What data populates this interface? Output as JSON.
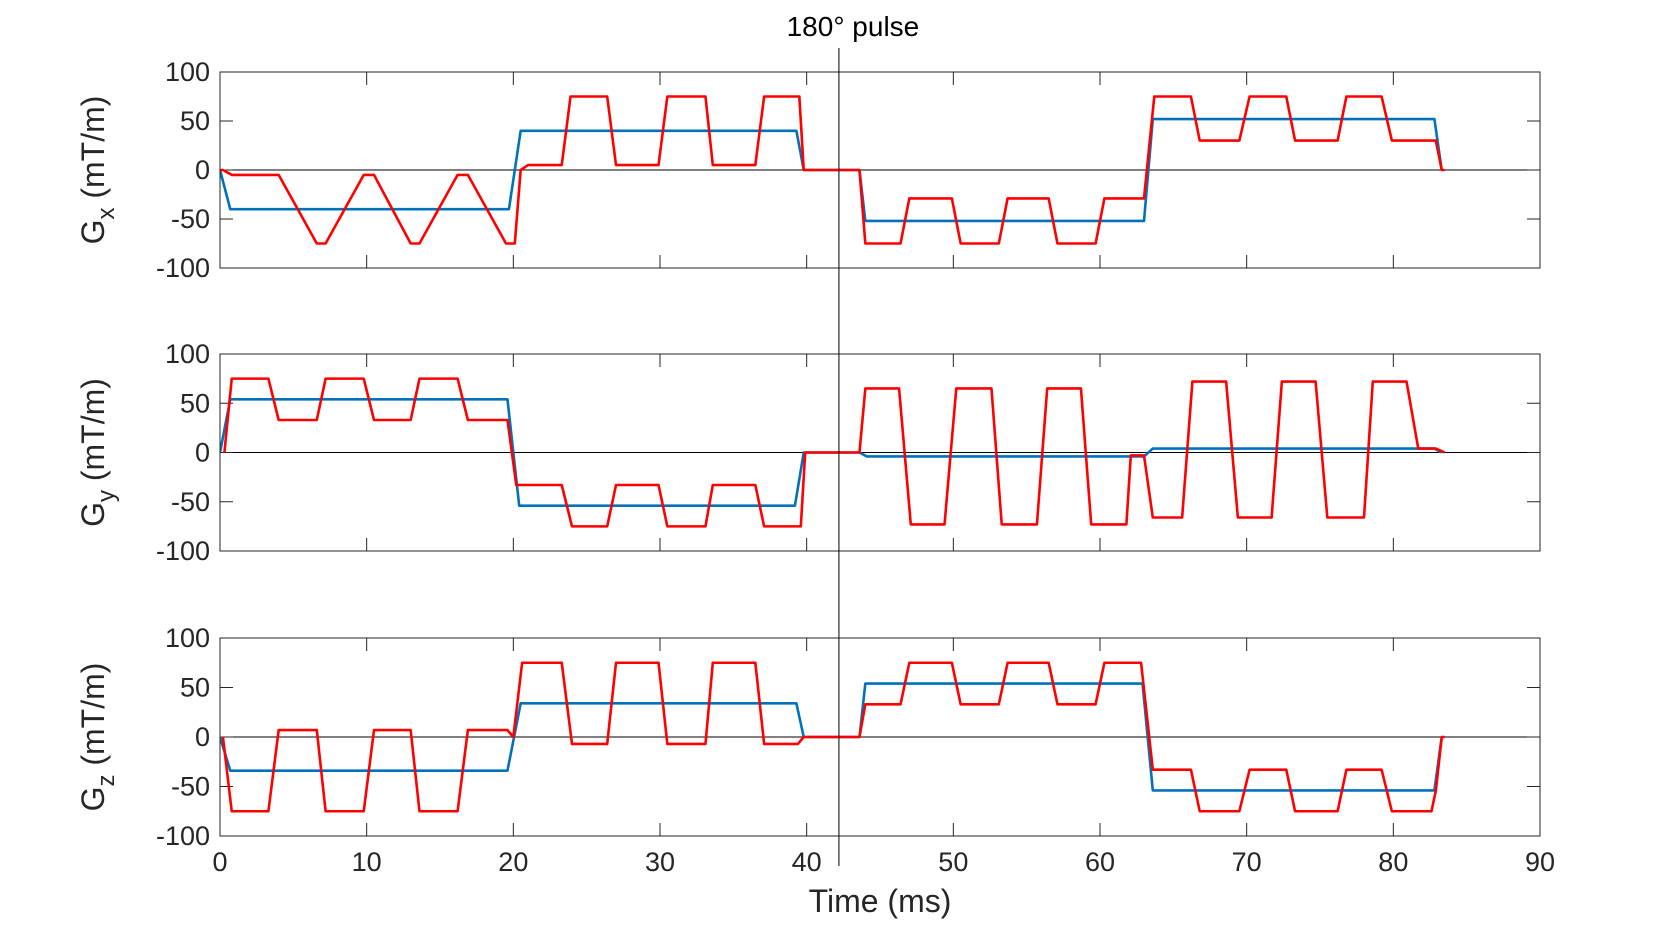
{
  "chart_data": {
    "type": "line",
    "xlabel": "Time (ms)",
    "xlim": [
      0,
      90
    ],
    "xticks": [
      0,
      10,
      20,
      30,
      40,
      50,
      60,
      70,
      80,
      90
    ],
    "marker": {
      "x": 42.2,
      "label": "180° pulse"
    },
    "colors": {
      "blue": "#0072BD",
      "red": "#FF0000"
    },
    "panels": [
      {
        "id": "gx",
        "ylabel_main": "G",
        "ylabel_sub": "x",
        "ylabel_units": " (mT/m)",
        "ylim": [
          -100,
          100
        ],
        "yticks": [
          100,
          50,
          0,
          -50,
          -100
        ],
        "series": [
          {
            "name": "blue",
            "points": [
              [
                0,
                0
              ],
              [
                0.7,
                -40
              ],
              [
                19.7,
                -40
              ],
              [
                20.5,
                40
              ],
              [
                39.3,
                40
              ],
              [
                39.8,
                0
              ],
              [
                43.6,
                0
              ],
              [
                44,
                -52
              ],
              [
                63,
                -52
              ],
              [
                63.6,
                52
              ],
              [
                82.8,
                52
              ],
              [
                83.3,
                0
              ]
            ]
          },
          {
            "name": "red",
            "points": [
              [
                0,
                0
              ],
              [
                0.2,
                0
              ],
              [
                0.8,
                -5
              ],
              [
                3.3,
                -5
              ],
              [
                4,
                -5
              ],
              [
                6.6,
                -75
              ],
              [
                7.2,
                -75
              ],
              [
                9.8,
                -5
              ],
              [
                10.5,
                -5
              ],
              [
                13.0,
                -75
              ],
              [
                13.6,
                -75
              ],
              [
                16.2,
                -5
              ],
              [
                16.9,
                -5
              ],
              [
                19.5,
                -75
              ],
              [
                20.1,
                -75
              ],
              [
                20.5,
                0
              ],
              [
                21.0,
                5
              ],
              [
                23.3,
                5
              ],
              [
                23.9,
                75
              ],
              [
                26.4,
                75
              ],
              [
                27.0,
                5
              ],
              [
                29.9,
                5
              ],
              [
                30.5,
                75
              ],
              [
                33.1,
                75
              ],
              [
                33.6,
                5
              ],
              [
                36.5,
                5
              ],
              [
                37.1,
                75
              ],
              [
                39.5,
                75
              ],
              [
                39.8,
                0
              ],
              [
                43.6,
                0
              ],
              [
                44,
                -75
              ],
              [
                46.4,
                -75
              ],
              [
                47,
                -29
              ],
              [
                49.9,
                -29
              ],
              [
                50.5,
                -75
              ],
              [
                53.1,
                -75
              ],
              [
                53.7,
                -29
              ],
              [
                56.5,
                -29
              ],
              [
                57.1,
                -75
              ],
              [
                59.7,
                -75
              ],
              [
                60.3,
                -29
              ],
              [
                63.0,
                -29
              ],
              [
                63.7,
                75
              ],
              [
                66.2,
                75
              ],
              [
                66.8,
                30
              ],
              [
                69.5,
                30
              ],
              [
                70.2,
                75
              ],
              [
                72.7,
                75
              ],
              [
                73.3,
                30
              ],
              [
                76.2,
                30
              ],
              [
                76.8,
                75
              ],
              [
                79.2,
                75
              ],
              [
                79.9,
                30
              ],
              [
                82.7,
                30
              ],
              [
                82.9,
                30
              ],
              [
                83.3,
                0
              ],
              [
                83.5,
                0
              ]
            ]
          }
        ]
      },
      {
        "id": "gy",
        "ylabel_main": "G",
        "ylabel_sub": "y",
        "ylabel_units": " (mT/m)",
        "ylim": [
          -100,
          100
        ],
        "yticks": [
          100,
          50,
          0,
          -50,
          -100
        ],
        "series": [
          {
            "name": "blue",
            "points": [
              [
                0,
                0
              ],
              [
                0.7,
                54
              ],
              [
                19.6,
                54
              ],
              [
                20.4,
                -54
              ],
              [
                39.2,
                -54
              ],
              [
                39.8,
                0
              ],
              [
                43.6,
                0
              ],
              [
                44.1,
                -4
              ],
              [
                63,
                -4
              ],
              [
                63.6,
                4
              ],
              [
                82.8,
                4
              ],
              [
                83.3,
                0
              ]
            ]
          },
          {
            "name": "red",
            "points": [
              [
                0.3,
                0
              ],
              [
                0.8,
                75
              ],
              [
                3.3,
                75
              ],
              [
                4,
                33
              ],
              [
                6.6,
                33
              ],
              [
                7.2,
                75
              ],
              [
                9.8,
                75
              ],
              [
                10.5,
                33
              ],
              [
                13.0,
                33
              ],
              [
                13.6,
                75
              ],
              [
                16.2,
                75
              ],
              [
                16.9,
                33
              ],
              [
                19.6,
                33
              ],
              [
                20.2,
                -33
              ],
              [
                23.3,
                -33
              ],
              [
                24,
                -75
              ],
              [
                26.4,
                -75
              ],
              [
                27,
                -33
              ],
              [
                29.9,
                -33
              ],
              [
                30.5,
                -75
              ],
              [
                33.1,
                -75
              ],
              [
                33.6,
                -33
              ],
              [
                36.5,
                -33
              ],
              [
                37.1,
                -75
              ],
              [
                39.6,
                -75
              ],
              [
                39.9,
                0
              ],
              [
                43.6,
                0
              ],
              [
                44,
                65
              ],
              [
                46.3,
                65
              ],
              [
                47.1,
                -73
              ],
              [
                49.4,
                -73
              ],
              [
                50.2,
                65
              ],
              [
                52.6,
                65
              ],
              [
                53.3,
                -73
              ],
              [
                55.7,
                -73
              ],
              [
                56.4,
                65
              ],
              [
                58.7,
                65
              ],
              [
                59.4,
                -73
              ],
              [
                61.8,
                -73
              ],
              [
                62.1,
                -3
              ],
              [
                63,
                -3
              ],
              [
                63.6,
                -66
              ],
              [
                65.6,
                -66
              ],
              [
                66.3,
                72
              ],
              [
                68.6,
                72
              ],
              [
                69.4,
                -66
              ],
              [
                71.7,
                -66
              ],
              [
                72.4,
                72
              ],
              [
                74.7,
                72
              ],
              [
                75.5,
                -66
              ],
              [
                78.0,
                -66
              ],
              [
                78.6,
                72
              ],
              [
                80.9,
                72
              ],
              [
                81.7,
                4
              ],
              [
                82.9,
                4
              ],
              [
                83.5,
                0
              ]
            ]
          }
        ]
      },
      {
        "id": "gz",
        "ylabel_main": "G",
        "ylabel_sub": "z",
        "ylabel_units": " (mT/m)",
        "ylim": [
          -100,
          100
        ],
        "yticks": [
          100,
          50,
          0,
          -50,
          -100
        ],
        "series": [
          {
            "name": "blue",
            "points": [
              [
                0,
                0
              ],
              [
                0.7,
                -34
              ],
              [
                19.6,
                -34
              ],
              [
                20.5,
                34
              ],
              [
                39.3,
                34
              ],
              [
                39.8,
                0
              ],
              [
                43.6,
                0
              ],
              [
                44,
                54
              ],
              [
                62.9,
                54
              ],
              [
                63.6,
                -54
              ],
              [
                82.8,
                -54
              ],
              [
                83.3,
                0
              ]
            ]
          },
          {
            "name": "red",
            "points": [
              [
                0.2,
                0
              ],
              [
                0.8,
                -75
              ],
              [
                3.3,
                -75
              ],
              [
                4,
                7
              ],
              [
                6.6,
                7
              ],
              [
                7.2,
                -75
              ],
              [
                9.8,
                -75
              ],
              [
                10.5,
                7
              ],
              [
                13.0,
                7
              ],
              [
                13.6,
                -75
              ],
              [
                16.2,
                -75
              ],
              [
                16.9,
                7
              ],
              [
                19.6,
                7
              ],
              [
                20.0,
                0
              ],
              [
                20.6,
                75
              ],
              [
                23.3,
                75
              ],
              [
                24,
                -7
              ],
              [
                26.4,
                -7
              ],
              [
                27,
                75
              ],
              [
                29.9,
                75
              ],
              [
                30.5,
                -7
              ],
              [
                33.1,
                -7
              ],
              [
                33.6,
                75
              ],
              [
                36.5,
                75
              ],
              [
                37.1,
                -7
              ],
              [
                39.4,
                -7
              ],
              [
                39.8,
                0
              ],
              [
                43.6,
                0
              ],
              [
                44,
                33
              ],
              [
                46.4,
                33
              ],
              [
                47,
                75
              ],
              [
                49.9,
                75
              ],
              [
                50.5,
                33
              ],
              [
                53.1,
                33
              ],
              [
                53.7,
                75
              ],
              [
                56.5,
                75
              ],
              [
                57.1,
                33
              ],
              [
                59.7,
                33
              ],
              [
                60.3,
                75
              ],
              [
                62.8,
                75
              ],
              [
                63.6,
                -33
              ],
              [
                66.2,
                -33
              ],
              [
                66.8,
                -75
              ],
              [
                69.5,
                -75
              ],
              [
                70.2,
                -33
              ],
              [
                72.7,
                -33
              ],
              [
                73.3,
                -75
              ],
              [
                76.2,
                -75
              ],
              [
                76.8,
                -33
              ],
              [
                79.2,
                -33
              ],
              [
                79.9,
                -75
              ],
              [
                82.6,
                -75
              ],
              [
                82.9,
                -54
              ],
              [
                83.3,
                0
              ],
              [
                83.5,
                0
              ]
            ]
          }
        ]
      }
    ]
  }
}
